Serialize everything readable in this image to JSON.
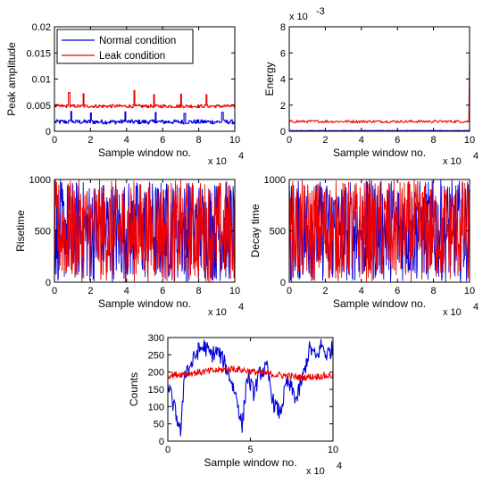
{
  "colors": {
    "normal": "#0000dd",
    "leak": "#ee0000",
    "axis": "#000000"
  },
  "legend": {
    "items": [
      {
        "label": "Normal condition",
        "color": "#0000dd"
      },
      {
        "label": "Leak condition",
        "color": "#ee0000"
      }
    ],
    "placement": "top-left of first panel"
  },
  "chart_data": [
    {
      "id": "peak",
      "type": "line",
      "xlabel": "Sample window no.",
      "ylabel": "Peak amplitude",
      "x_multiplier": "x 10",
      "x_exponent": "4",
      "y_multiplier": "",
      "y_exponent": "",
      "xlim": [
        0,
        10
      ],
      "ylim": [
        0,
        0.02
      ],
      "xticks": [
        "0",
        "2",
        "4",
        "6",
        "8",
        "10"
      ],
      "yticks": [
        "0",
        "0.005",
        "0.01",
        "0.015",
        "0.02"
      ],
      "grid": false,
      "series": [
        {
          "name": "Normal condition",
          "color": "#0000dd",
          "baseline": 0.0018,
          "noise": 0.0008,
          "spikes": [
            [
              0.9,
              0.0038
            ],
            [
              2.0,
              0.0035
            ],
            [
              3.9,
              0.0037
            ],
            [
              5.6,
              0.0036
            ],
            [
              7.2,
              0.0034
            ],
            [
              9.3,
              0.0036
            ]
          ],
          "end_value": 0.0005,
          "style": "step"
        },
        {
          "name": "Leak condition",
          "color": "#ee0000",
          "baseline": 0.0048,
          "noise": 0.0006,
          "spikes": [
            [
              0.8,
              0.0074
            ],
            [
              1.6,
              0.0072
            ],
            [
              4.4,
              0.0078
            ],
            [
              5.5,
              0.007
            ],
            [
              7.0,
              0.0071
            ],
            [
              8.4,
              0.007
            ]
          ],
          "end_value": 0.0165,
          "style": "step"
        }
      ]
    },
    {
      "id": "energy",
      "type": "line",
      "xlabel": "Sample window no.",
      "ylabel": "Energy",
      "x_multiplier": "x 10",
      "x_exponent": "4",
      "y_multiplier": "x 10",
      "y_exponent": "-3",
      "xlim": [
        0,
        10
      ],
      "ylim": [
        0,
        8
      ],
      "xticks": [
        "0",
        "2",
        "4",
        "6",
        "8",
        "10"
      ],
      "yticks": [
        "0",
        "2",
        "4",
        "6",
        "8"
      ],
      "grid": false,
      "series": [
        {
          "name": "Normal condition",
          "color": "#0000dd",
          "baseline": 0.05,
          "noise": 0.03,
          "end_value": 0.05,
          "style": "line"
        },
        {
          "name": "Leak condition",
          "color": "#ee0000",
          "baseline": 0.75,
          "noise": 0.2,
          "end_value": 6.3,
          "style": "line"
        }
      ]
    },
    {
      "id": "risetime",
      "type": "line",
      "xlabel": "Sample window no.",
      "ylabel": "Risetime",
      "x_multiplier": "x 10",
      "x_exponent": "4",
      "y_multiplier": "",
      "y_exponent": "",
      "xlim": [
        0,
        10
      ],
      "ylim": [
        0,
        1000
      ],
      "xticks": [
        "0",
        "2",
        "4",
        "6",
        "8",
        "10"
      ],
      "yticks": [
        "0",
        "500",
        "1000"
      ],
      "grid": false,
      "series": [
        {
          "name": "Normal condition",
          "color": "#0000dd",
          "range": [
            0,
            1000
          ],
          "style": "random"
        },
        {
          "name": "Leak condition",
          "color": "#ee0000",
          "range": [
            0,
            1000
          ],
          "style": "random"
        }
      ]
    },
    {
      "id": "decay",
      "type": "line",
      "xlabel": "Sample window no.",
      "ylabel": "Decay time",
      "x_multiplier": "x 10",
      "x_exponent": "4",
      "y_multiplier": "",
      "y_exponent": "",
      "xlim": [
        0,
        10
      ],
      "ylim": [
        0,
        1000
      ],
      "xticks": [
        "0",
        "2",
        "4",
        "6",
        "8",
        "10"
      ],
      "yticks": [
        "0",
        "500",
        "1000"
      ],
      "grid": false,
      "series": [
        {
          "name": "Normal condition",
          "color": "#0000dd",
          "range": [
            0,
            1000
          ],
          "style": "random"
        },
        {
          "name": "Leak condition",
          "color": "#ee0000",
          "range": [
            0,
            1000
          ],
          "style": "random"
        }
      ]
    },
    {
      "id": "counts",
      "type": "line",
      "xlabel": "Sample window no.",
      "ylabel": "Counts",
      "x_multiplier": "x 10",
      "x_exponent": "4",
      "y_multiplier": "",
      "y_exponent": "",
      "xlim": [
        0,
        10
      ],
      "ylim": [
        0,
        300
      ],
      "xticks": [
        "0",
        "5",
        "10"
      ],
      "yticks": [
        "0",
        "50",
        "100",
        "150",
        "200",
        "250",
        "300"
      ],
      "grid": false,
      "series": [
        {
          "name": "Normal condition",
          "color": "#0000dd",
          "style": "walk",
          "knots": [
            [
              0,
              170
            ],
            [
              0.3,
              110
            ],
            [
              0.6,
              60
            ],
            [
              0.8,
              20
            ],
            [
              1.0,
              200
            ],
            [
              1.4,
              220
            ],
            [
              1.8,
              260
            ],
            [
              2.2,
              275
            ],
            [
              2.6,
              250
            ],
            [
              3.0,
              260
            ],
            [
              3.4,
              230
            ],
            [
              3.8,
              180
            ],
            [
              4.2,
              120
            ],
            [
              4.5,
              40
            ],
            [
              4.8,
              190
            ],
            [
              5.2,
              140
            ],
            [
              5.6,
              200
            ],
            [
              6.0,
              210
            ],
            [
              6.4,
              110
            ],
            [
              6.8,
              80
            ],
            [
              7.2,
              170
            ],
            [
              7.5,
              150
            ],
            [
              7.8,
              120
            ],
            [
              8.2,
              190
            ],
            [
              8.6,
              270
            ],
            [
              9.0,
              240
            ],
            [
              9.3,
              280
            ],
            [
              9.6,
              250
            ],
            [
              10,
              270
            ]
          ],
          "noise": 25
        },
        {
          "name": "Leak condition",
          "color": "#ee0000",
          "style": "walk",
          "knots": [
            [
              0,
              190
            ],
            [
              2,
              200
            ],
            [
              4,
              210
            ],
            [
              6,
              195
            ],
            [
              8,
              185
            ],
            [
              10,
              190
            ]
          ],
          "noise": 10
        }
      ]
    }
  ]
}
